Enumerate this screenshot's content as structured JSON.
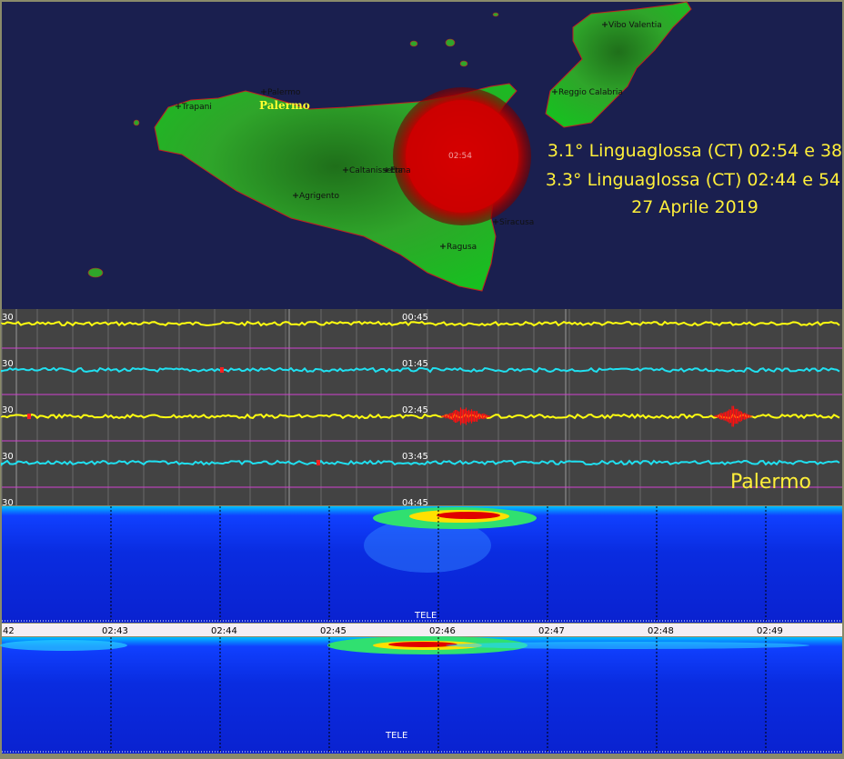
{
  "map": {
    "labels": [
      "Vibo Valentia",
      "Reggio Calabria",
      "Trapani",
      "Palermo",
      "Caltanissetta",
      "Enna",
      "Agrigento",
      "Siracusa",
      "Ragusa"
    ],
    "city_highlight": "Palermo",
    "event_time": "02:54",
    "annotations": [
      "3.1° Linguaglossa (CT) 02:54 e 38",
      "3.3° Linguaglossa (CT) 02:44 e 54",
      "27 Aprile 2019"
    ]
  },
  "seismogram": {
    "amplitude_labels": [
      "30",
      "30",
      "30",
      "30",
      "30"
    ],
    "hour_labels": [
      "00:45",
      "01:45",
      "02:45",
      "03:45",
      "04:45"
    ],
    "station": "Palermo"
  },
  "spectrogram": {
    "upper_label": "TELE",
    "lower_label": "TELE",
    "time_labels": [
      "42",
      "02:43",
      "02:44",
      "02:45",
      "02:46",
      "02:47",
      "02:48",
      "02:49"
    ]
  }
}
